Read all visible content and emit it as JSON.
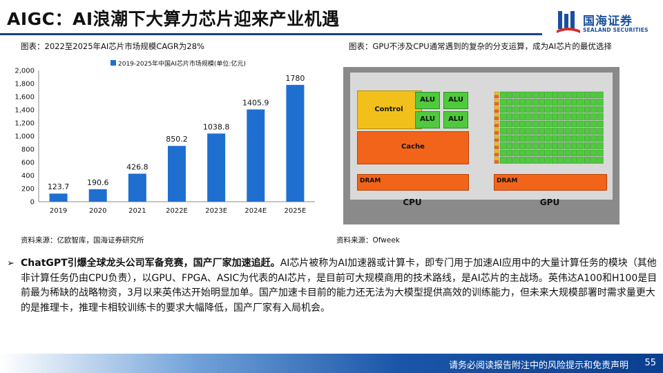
{
  "title": "AIGC：AI浪潮下大算力芯片迎来产业机遇",
  "logo": {
    "name": "国海证券",
    "en": "SEALAND SECURITIES"
  },
  "left_caption": "图表：2022至2025年AI芯片市场规模CAGR为28%",
  "right_caption": "图表：GPU不涉及CPU通常遇到的复杂的分支运算，成为AI芯片的最优选择",
  "left_source": "资料来源：亿欧智库，国海证券研究所",
  "right_source": "资料来源：Ofweek",
  "chart_data": {
    "type": "bar",
    "legend": "2019-2025年中国AI芯片市场规模(单位:亿元)",
    "legend_position": "top",
    "categories": [
      "2019",
      "2020",
      "2021",
      "2022E",
      "2023E",
      "2024E",
      "2025E"
    ],
    "values": [
      123.7,
      190.6,
      426.8,
      850.2,
      1038.8,
      1405.9,
      1780
    ],
    "value_labels": [
      "123.7",
      "190.6",
      "426.8",
      "850.2",
      "1038.8",
      "1405.9",
      "1780"
    ],
    "ylim": [
      0,
      2000
    ],
    "yticks": [
      "0",
      "200",
      "400",
      "600",
      "800",
      "1,000",
      "1,200",
      "1,400",
      "1,600",
      "1,800",
      "2,000"
    ],
    "grid": false,
    "bar_color": "#1f6fd1"
  },
  "diagram": {
    "cpu_label": "CPU",
    "gpu_label": "GPU",
    "control_label": "Control",
    "alu_labels": [
      "ALU",
      "ALU",
      "ALU",
      "ALU"
    ],
    "cache_label": "Cache",
    "cpu_dram_label": "DRAM",
    "gpu_dram_label": "DRAM",
    "colors": {
      "control": "#f2c01b",
      "alu": "#4fc93d",
      "cache": "#f26419",
      "dram": "#f26419",
      "frame": "#8a8a8a",
      "inner": "#d9d9d9"
    }
  },
  "bullet": {
    "mark": "➢",
    "bold": "ChatGPT引爆全球龙头公司军备竞赛，国产厂家加速追赶。",
    "text": "AI芯片被称为AI加速器或计算卡，即专门用于加速AI应用中的大量计算任务的模块（其他非计算任务仍由CPU负责），以GPU、FPGA、ASIC为代表的AI芯片，是目前可大规模商用的技术路线，是AI芯片的主战场。英伟达A100和H100是目前最为稀缺的战略物资，3月以来英伟达开始明显加单。国产加速卡目前的能力还无法为大模型提供高效的训练能力，但未来大规模部署时需求量更大的是推理卡，推理卡相较训练卡的要求大幅降低，国产厂家有入局机会。"
  },
  "footer": {
    "text": "请务必阅读报告附注中的风险提示和免责声明",
    "page": "55"
  }
}
